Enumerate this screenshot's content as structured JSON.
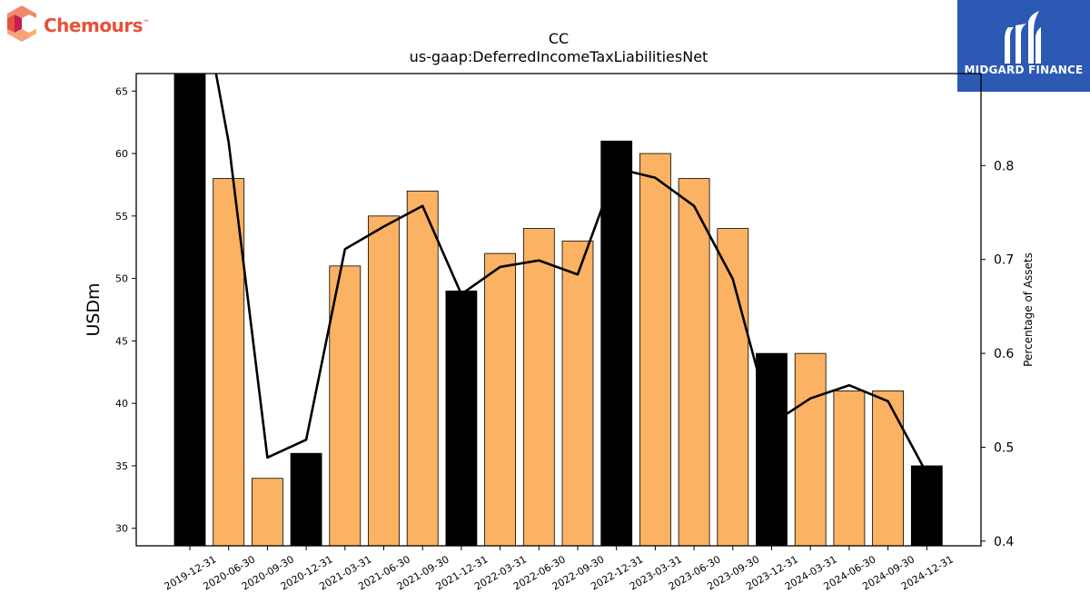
{
  "logos": {
    "left_text": "Chemours",
    "left_tm": "™",
    "left_icon": "chemours-c-icon",
    "right_text": "MIDGARD FINANCE",
    "right_icon": "midgard-m-icon",
    "right_bg": "#2b59b3"
  },
  "chart_data": {
    "type": "bar",
    "title_line1": "CC",
    "title_line2": "us-gaap:DeferredIncomeTaxLiabilitiesNet",
    "ylabel": "USDm",
    "ylabel_right": "Percentage of Assets",
    "ylim": [
      28.6,
      66.4
    ],
    "ylim_right": [
      0.395,
      0.898
    ],
    "yticks": [
      30,
      35,
      40,
      45,
      50,
      55,
      60,
      65
    ],
    "yticks_right": [
      0.4,
      0.5,
      0.6,
      0.7,
      0.8
    ],
    "categories": [
      "2019-12-31",
      "2020-06-30",
      "2020-09-30",
      "2020-12-31",
      "2021-03-31",
      "2021-06-30",
      "2021-09-30",
      "2021-12-31",
      "2022-03-31",
      "2022-06-30",
      "2022-09-30",
      "2022-12-31",
      "2023-03-31",
      "2023-06-30",
      "2023-09-30",
      "2023-12-31",
      "2024-03-31",
      "2024-06-30",
      "2024-09-30",
      "2024-12-31"
    ],
    "values": [
      67,
      58,
      34,
      36,
      51,
      55,
      57,
      49,
      52,
      54,
      53,
      61,
      60,
      58,
      54,
      44,
      44,
      41,
      41,
      35
    ],
    "bar_kind": [
      "annual",
      "quarterly",
      "quarterly",
      "annual",
      "quarterly",
      "quarterly",
      "quarterly",
      "annual",
      "quarterly",
      "quarterly",
      "quarterly",
      "annual",
      "quarterly",
      "quarterly",
      "quarterly",
      "annual",
      "quarterly",
      "quarterly",
      "quarterly",
      "annual"
    ],
    "line_series": {
      "values": [
        1.05,
        0.825,
        0.489,
        0.508,
        0.711,
        0.735,
        0.757,
        0.663,
        0.692,
        0.699,
        0.684,
        0.797,
        0.787,
        0.757,
        0.679,
        0.525,
        0.552,
        0.566,
        0.549,
        0.472
      ]
    },
    "colors": {
      "annual": "#000000",
      "quarterly": "#fbb262",
      "line": "#000000"
    },
    "grid": false,
    "legend": "none"
  }
}
